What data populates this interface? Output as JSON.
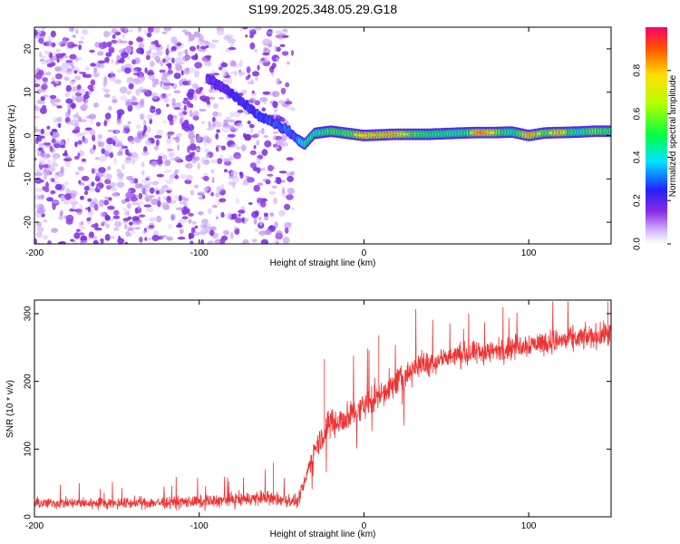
{
  "chart_data": [
    {
      "type": "heatmap",
      "title": "S199.2025.348.05.29.G18",
      "xlabel": "Height of straight line (km)",
      "ylabel": "Frequency (Hz)",
      "xlim": [
        -200,
        150
      ],
      "ylim": [
        -25,
        25
      ],
      "xticks": [
        {
          "value": -200,
          "label": "-200"
        },
        {
          "value": -100,
          "label": "-100"
        },
        {
          "value": 0,
          "label": "0"
        },
        {
          "value": 100,
          "label": "100"
        }
      ],
      "yticks": [
        {
          "value": -20,
          "label": "-20"
        },
        {
          "value": -10,
          "label": "-10"
        },
        {
          "value": 0,
          "label": "0"
        },
        {
          "value": 10,
          "label": "10"
        },
        {
          "value": 20,
          "label": "20"
        }
      ],
      "colorbar": {
        "label": "Normalized spectral amplitude",
        "range": [
          0,
          1
        ],
        "ticks": [
          {
            "value": 0.0,
            "label": "0.0"
          },
          {
            "value": 0.2,
            "label": "0.2"
          },
          {
            "value": 0.4,
            "label": "0.4"
          },
          {
            "value": 0.6,
            "label": "0.6"
          },
          {
            "value": 0.8,
            "label": "0.8"
          }
        ]
      },
      "ridge": {
        "x": [
          -95,
          -85,
          -75,
          -65,
          -55,
          -45,
          -40,
          -36,
          -30,
          -20,
          -10,
          0,
          20,
          40,
          60,
          70,
          80,
          90,
          100,
          110,
          120,
          130,
          140,
          150
        ],
        "freq": [
          13,
          11,
          8,
          5,
          3,
          1,
          -1,
          -2,
          0.5,
          1,
          0.5,
          0,
          0.3,
          0.3,
          0.6,
          0.7,
          0.7,
          0.8,
          0,
          0.6,
          0.7,
          0.8,
          1,
          1
        ],
        "amplitude": [
          0.15,
          0.2,
          0.25,
          0.3,
          0.35,
          0.35,
          0.4,
          0.55,
          0.6,
          0.65,
          0.7,
          0.8,
          0.85,
          0.6,
          0.6,
          0.9,
          0.75,
          0.6,
          0.9,
          0.7,
          0.85,
          0.55,
          0.75,
          0.6
        ]
      },
      "noise_region": {
        "x_min": -200,
        "x_max": -43
      }
    },
    {
      "type": "line",
      "xlabel": "Height of straight line (km)",
      "ylabel": "SNR (10 * v/v)",
      "xlim": [
        -200,
        150
      ],
      "ylim": [
        0,
        320
      ],
      "xticks": [
        {
          "value": -200,
          "label": "-200"
        },
        {
          "value": -100,
          "label": "-100"
        },
        {
          "value": 0,
          "label": "0"
        },
        {
          "value": 100,
          "label": "100"
        }
      ],
      "yticks": [
        {
          "value": 0,
          "label": "0"
        },
        {
          "value": 100,
          "label": "100"
        },
        {
          "value": 200,
          "label": "200"
        },
        {
          "value": 300,
          "label": "300"
        }
      ],
      "series": [
        {
          "name": "SNR",
          "color": "#ee3333",
          "envelope_x": [
            -200,
            -150,
            -100,
            -60,
            -40,
            -30,
            -25,
            -20,
            -10,
            0,
            10,
            20,
            30,
            50,
            80,
            100,
            120,
            150
          ],
          "envelope_mean": [
            20,
            20,
            22,
            28,
            22,
            100,
            120,
            140,
            145,
            165,
            180,
            200,
            220,
            235,
            245,
            255,
            260,
            270
          ],
          "envelope_noise": [
            10,
            10,
            12,
            14,
            12,
            22,
            25,
            28,
            30,
            28,
            25,
            25,
            25,
            22,
            22,
            22,
            22,
            22
          ],
          "spikes": [
            {
              "x": -24,
              "y": 233
            },
            {
              "x": 9,
              "y": 268
            },
            {
              "x": -55,
              "y": 80
            },
            {
              "x": 148,
              "y": 318
            }
          ]
        }
      ]
    }
  ]
}
